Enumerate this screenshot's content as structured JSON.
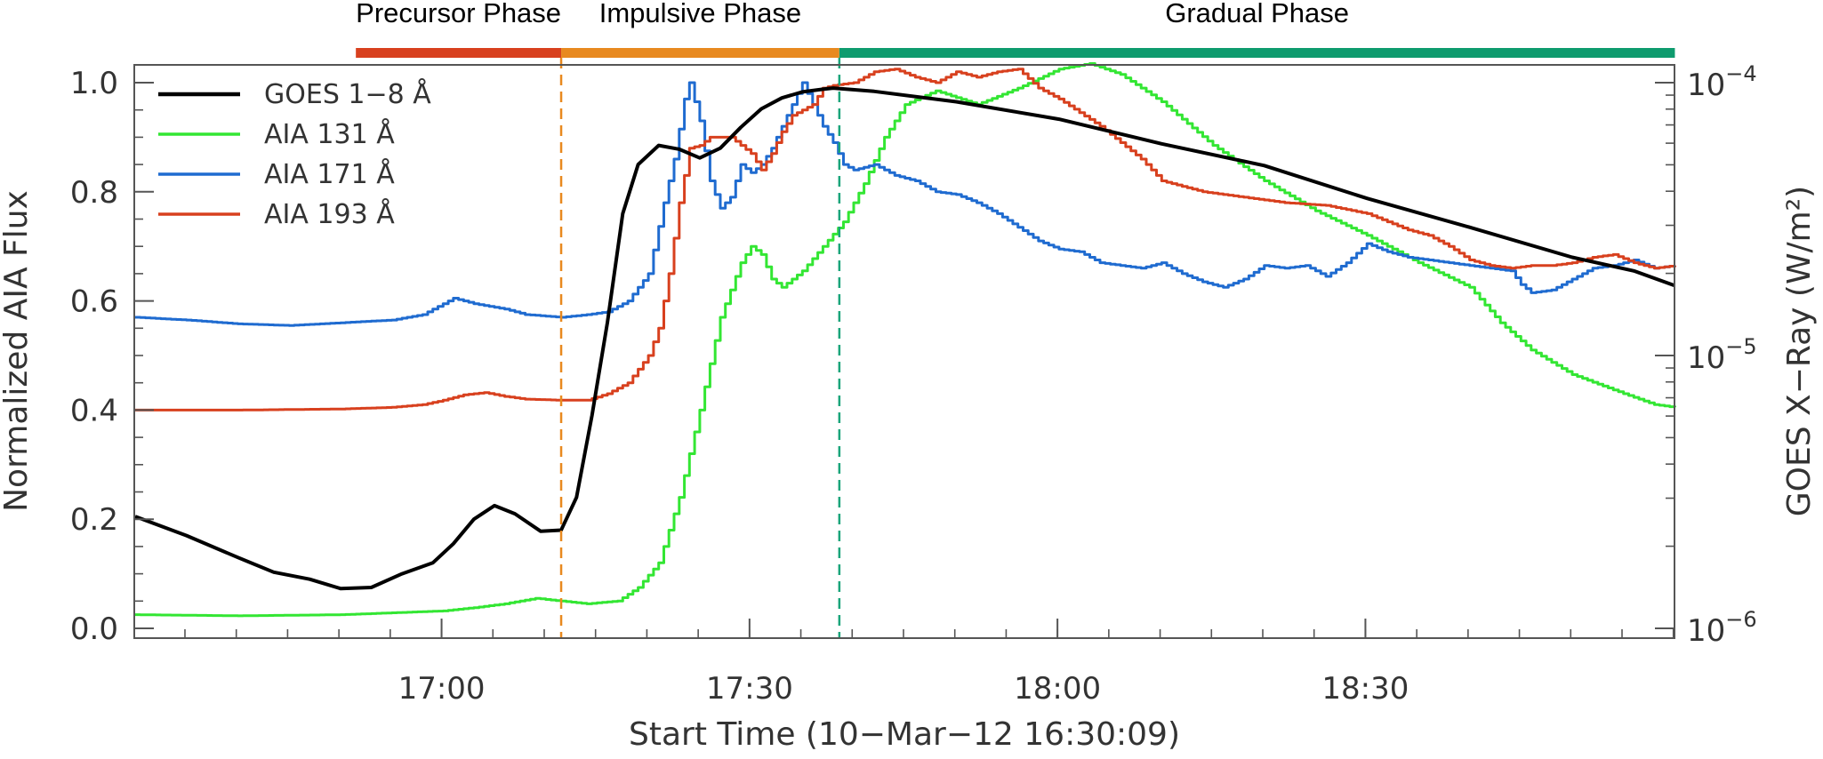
{
  "chart_data": {
    "type": "line",
    "xlabel": "Start Time (10−Mar−12 16:30:09)",
    "ylabel": "Normalized AIA Flux",
    "y2label": "GOES X−Ray (W/m²)",
    "x_unit": "minutes after 16:30:09",
    "xlim": [
      0,
      150
    ],
    "ylim": [
      0,
      1.03
    ],
    "y2lim_log10": [
      -6,
      -4
    ],
    "y2_scale": "log",
    "x_ticks": [
      {
        "x": 29.85,
        "label": "17:00"
      },
      {
        "x": 59.85,
        "label": "17:30"
      },
      {
        "x": 89.85,
        "label": "18:00"
      },
      {
        "x": 119.85,
        "label": "18:30"
      }
    ],
    "y_ticks": [
      {
        "v": 0.0,
        "label": "0.0"
      },
      {
        "v": 0.2,
        "label": "0.2"
      },
      {
        "v": 0.4,
        "label": "0.4"
      },
      {
        "v": 0.6,
        "label": "0.6"
      },
      {
        "v": 0.8,
        "label": "0.8"
      },
      {
        "v": 1.0,
        "label": "1.0"
      }
    ],
    "y2_ticks": [
      {
        "exp": -6,
        "base": "10",
        "sup": "−6"
      },
      {
        "exp": -5,
        "base": "10",
        "sup": "−5"
      },
      {
        "exp": -4,
        "base": "10",
        "sup": "−4"
      }
    ],
    "phases": [
      {
        "name": "Precursor Phase",
        "x0": 21.5,
        "x1": 41.5,
        "color": "#d8401e"
      },
      {
        "name": "Impulsive Phase",
        "x0": 41.5,
        "x1": 68.6,
        "color": "#e8891f"
      },
      {
        "name": "Gradual Phase",
        "x0": 68.6,
        "x1": 150,
        "color": "#0e9b6e"
      }
    ],
    "phase_boundaries": [
      {
        "x": 41.5,
        "color": "#e8891f"
      },
      {
        "x": 68.6,
        "color": "#1aa57a"
      }
    ],
    "legend_position": "top-left",
    "series": [
      {
        "name": "GOES 1−8 Å",
        "color": "#000000",
        "step": false,
        "points": [
          [
            0,
            0.205
          ],
          [
            5,
            0.17
          ],
          [
            10,
            0.13
          ],
          [
            13.5,
            0.103
          ],
          [
            17,
            0.09
          ],
          [
            20,
            0.073
          ],
          [
            23,
            0.075
          ],
          [
            26,
            0.1
          ],
          [
            29,
            0.12
          ],
          [
            31,
            0.155
          ],
          [
            33,
            0.2
          ],
          [
            35,
            0.225
          ],
          [
            37,
            0.21
          ],
          [
            39.5,
            0.178
          ],
          [
            41.5,
            0.18
          ],
          [
            43,
            0.24
          ],
          [
            44.5,
            0.39
          ],
          [
            46,
            0.56
          ],
          [
            47.5,
            0.76
          ],
          [
            49,
            0.85
          ],
          [
            51,
            0.885
          ],
          [
            53,
            0.878
          ],
          [
            55,
            0.862
          ],
          [
            57,
            0.88
          ],
          [
            59,
            0.918
          ],
          [
            61,
            0.952
          ],
          [
            63,
            0.972
          ],
          [
            65,
            0.983
          ],
          [
            67,
            0.988
          ],
          [
            68,
            0.99
          ],
          [
            72,
            0.984
          ],
          [
            80,
            0.965
          ],
          [
            90,
            0.933
          ],
          [
            100,
            0.888
          ],
          [
            110,
            0.848
          ],
          [
            120,
            0.788
          ],
          [
            130,
            0.735
          ],
          [
            140,
            0.68
          ],
          [
            146,
            0.655
          ],
          [
            150,
            0.628
          ]
        ]
      },
      {
        "name": "AIA 131 Å",
        "color": "#33e633",
        "step": true,
        "points": [
          [
            0,
            0.025
          ],
          [
            10,
            0.023
          ],
          [
            20,
            0.025
          ],
          [
            30,
            0.032
          ],
          [
            33,
            0.038
          ],
          [
            36,
            0.045
          ],
          [
            39,
            0.055
          ],
          [
            41.5,
            0.05
          ],
          [
            44,
            0.045
          ],
          [
            47,
            0.05
          ],
          [
            49,
            0.075
          ],
          [
            51,
            0.12
          ],
          [
            53,
            0.24
          ],
          [
            55,
            0.4
          ],
          [
            57,
            0.57
          ],
          [
            59,
            0.67
          ],
          [
            60,
            0.7
          ],
          [
            61,
            0.685
          ],
          [
            62,
            0.64
          ],
          [
            63,
            0.625
          ],
          [
            65,
            0.655
          ],
          [
            67,
            0.7
          ],
          [
            69,
            0.745
          ],
          [
            71,
            0.815
          ],
          [
            73,
            0.9
          ],
          [
            75,
            0.96
          ],
          [
            78,
            0.985
          ],
          [
            82,
            0.96
          ],
          [
            86,
            0.99
          ],
          [
            90,
            1.025
          ],
          [
            93,
            1.035
          ],
          [
            96,
            1.015
          ],
          [
            100,
            0.965
          ],
          [
            105,
            0.885
          ],
          [
            110,
            0.82
          ],
          [
            115,
            0.765
          ],
          [
            120,
            0.72
          ],
          [
            125,
            0.67
          ],
          [
            130,
            0.625
          ],
          [
            133,
            0.56
          ],
          [
            136,
            0.51
          ],
          [
            140,
            0.465
          ],
          [
            145,
            0.43
          ],
          [
            148,
            0.41
          ],
          [
            150,
            0.405
          ]
        ]
      },
      {
        "name": "AIA 171 Å",
        "color": "#1f6bd0",
        "step": true,
        "points": [
          [
            0,
            0.57
          ],
          [
            5,
            0.565
          ],
          [
            10,
            0.558
          ],
          [
            15,
            0.555
          ],
          [
            20,
            0.56
          ],
          [
            25,
            0.565
          ],
          [
            28,
            0.575
          ],
          [
            30,
            0.595
          ],
          [
            31,
            0.605
          ],
          [
            33,
            0.595
          ],
          [
            36,
            0.585
          ],
          [
            38,
            0.575
          ],
          [
            41.5,
            0.57
          ],
          [
            44,
            0.575
          ],
          [
            46,
            0.58
          ],
          [
            48,
            0.6
          ],
          [
            50,
            0.65
          ],
          [
            51.5,
            0.78
          ],
          [
            52.5,
            0.86
          ],
          [
            53.5,
            0.97
          ],
          [
            54,
            1.0
          ],
          [
            55,
            0.93
          ],
          [
            56,
            0.82
          ],
          [
            57,
            0.77
          ],
          [
            58,
            0.79
          ],
          [
            59,
            0.85
          ],
          [
            60,
            0.835
          ],
          [
            61,
            0.85
          ],
          [
            62,
            0.88
          ],
          [
            63,
            0.92
          ],
          [
            64,
            0.96
          ],
          [
            65,
            1.0
          ],
          [
            66,
            0.96
          ],
          [
            67,
            0.92
          ],
          [
            68,
            0.89
          ],
          [
            69,
            0.85
          ],
          [
            70,
            0.84
          ],
          [
            72,
            0.85
          ],
          [
            74,
            0.83
          ],
          [
            76,
            0.82
          ],
          [
            78,
            0.8
          ],
          [
            80,
            0.795
          ],
          [
            82,
            0.78
          ],
          [
            84,
            0.76
          ],
          [
            86,
            0.735
          ],
          [
            88,
            0.71
          ],
          [
            90,
            0.695
          ],
          [
            92,
            0.69
          ],
          [
            94,
            0.67
          ],
          [
            96,
            0.665
          ],
          [
            98,
            0.66
          ],
          [
            100,
            0.67
          ],
          [
            102,
            0.65
          ],
          [
            104,
            0.635
          ],
          [
            106,
            0.625
          ],
          [
            108,
            0.64
          ],
          [
            110,
            0.665
          ],
          [
            112,
            0.66
          ],
          [
            114,
            0.665
          ],
          [
            116,
            0.645
          ],
          [
            118,
            0.67
          ],
          [
            120,
            0.705
          ],
          [
            122,
            0.69
          ],
          [
            124,
            0.68
          ],
          [
            126,
            0.675
          ],
          [
            128,
            0.67
          ],
          [
            130,
            0.665
          ],
          [
            132,
            0.66
          ],
          [
            134,
            0.655
          ],
          [
            135,
            0.63
          ],
          [
            136,
            0.615
          ],
          [
            138,
            0.62
          ],
          [
            140,
            0.64
          ],
          [
            142,
            0.66
          ],
          [
            144,
            0.665
          ],
          [
            146,
            0.675
          ],
          [
            148,
            0.66
          ],
          [
            150,
            0.665
          ]
        ]
      },
      {
        "name": "AIA 193 Å",
        "color": "#d8401e",
        "step": true,
        "points": [
          [
            0,
            0.4
          ],
          [
            10,
            0.4
          ],
          [
            20,
            0.402
          ],
          [
            25,
            0.405
          ],
          [
            28,
            0.41
          ],
          [
            30,
            0.418
          ],
          [
            32,
            0.428
          ],
          [
            34,
            0.432
          ],
          [
            36,
            0.425
          ],
          [
            38,
            0.42
          ],
          [
            41.5,
            0.418
          ],
          [
            44,
            0.418
          ],
          [
            46,
            0.43
          ],
          [
            48,
            0.45
          ],
          [
            50,
            0.5
          ],
          [
            51,
            0.55
          ],
          [
            52,
            0.65
          ],
          [
            53,
            0.78
          ],
          [
            54,
            0.88
          ],
          [
            55,
            0.885
          ],
          [
            56,
            0.9
          ],
          [
            58,
            0.9
          ],
          [
            60,
            0.87
          ],
          [
            61,
            0.84
          ],
          [
            62,
            0.87
          ],
          [
            63,
            0.91
          ],
          [
            64,
            0.94
          ],
          [
            65,
            0.95
          ],
          [
            66,
            0.96
          ],
          [
            67,
            0.99
          ],
          [
            68,
            0.995
          ],
          [
            70,
            1.0
          ],
          [
            72,
            1.02
          ],
          [
            74,
            1.025
          ],
          [
            76,
            1.01
          ],
          [
            78,
            1.0
          ],
          [
            80,
            1.02
          ],
          [
            82,
            1.01
          ],
          [
            84,
            1.02
          ],
          [
            86,
            1.025
          ],
          [
            88,
            0.99
          ],
          [
            90,
            0.97
          ],
          [
            92,
            0.945
          ],
          [
            94,
            0.92
          ],
          [
            96,
            0.89
          ],
          [
            98,
            0.86
          ],
          [
            100,
            0.82
          ],
          [
            104,
            0.8
          ],
          [
            108,
            0.79
          ],
          [
            112,
            0.78
          ],
          [
            116,
            0.775
          ],
          [
            120,
            0.76
          ],
          [
            124,
            0.73
          ],
          [
            126,
            0.72
          ],
          [
            128,
            0.7
          ],
          [
            130,
            0.675
          ],
          [
            132,
            0.665
          ],
          [
            134,
            0.66
          ],
          [
            136,
            0.665
          ],
          [
            138,
            0.665
          ],
          [
            140,
            0.67
          ],
          [
            142,
            0.68
          ],
          [
            144,
            0.685
          ],
          [
            146,
            0.67
          ],
          [
            148,
            0.66
          ],
          [
            150,
            0.665
          ]
        ]
      }
    ]
  }
}
